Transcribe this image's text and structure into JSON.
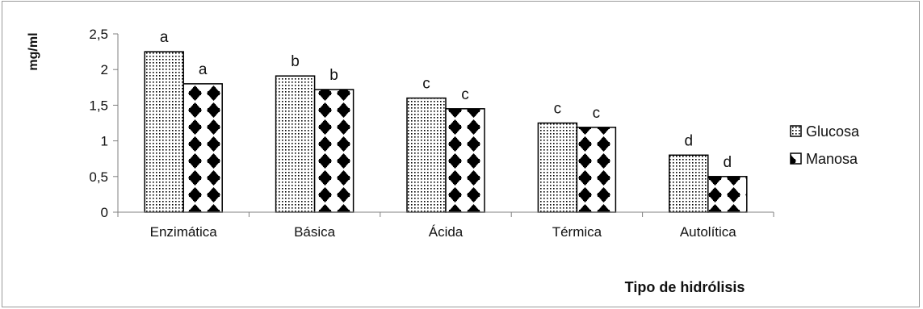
{
  "chart_data": {
    "type": "bar",
    "title": "",
    "xlabel": "Tipo de hidrólisis",
    "ylabel": "mg/ml",
    "ylim": [
      0,
      2.5
    ],
    "y_ticks": [
      "0",
      "0,5",
      "1",
      "1,5",
      "2",
      "2,5"
    ],
    "categories": [
      "Enzimática",
      "Básica",
      "Ácida",
      "Térmica",
      "Autolítica"
    ],
    "series": [
      {
        "name": "Glucosa",
        "values": [
          2.25,
          1.91,
          1.6,
          1.25,
          0.8
        ],
        "labels": [
          "a",
          "b",
          "c",
          "c",
          "d"
        ],
        "pattern": "dots"
      },
      {
        "name": "Manosa",
        "values": [
          1.8,
          1.72,
          1.45,
          1.19,
          0.5
        ],
        "labels": [
          "a",
          "b",
          "c",
          "c",
          "d"
        ],
        "pattern": "diamonds"
      }
    ],
    "grid": false,
    "legend_position": "right",
    "colors": {
      "bar_fill": "#ffffff",
      "bar_stroke": "#000000",
      "axis": "#808080"
    }
  }
}
